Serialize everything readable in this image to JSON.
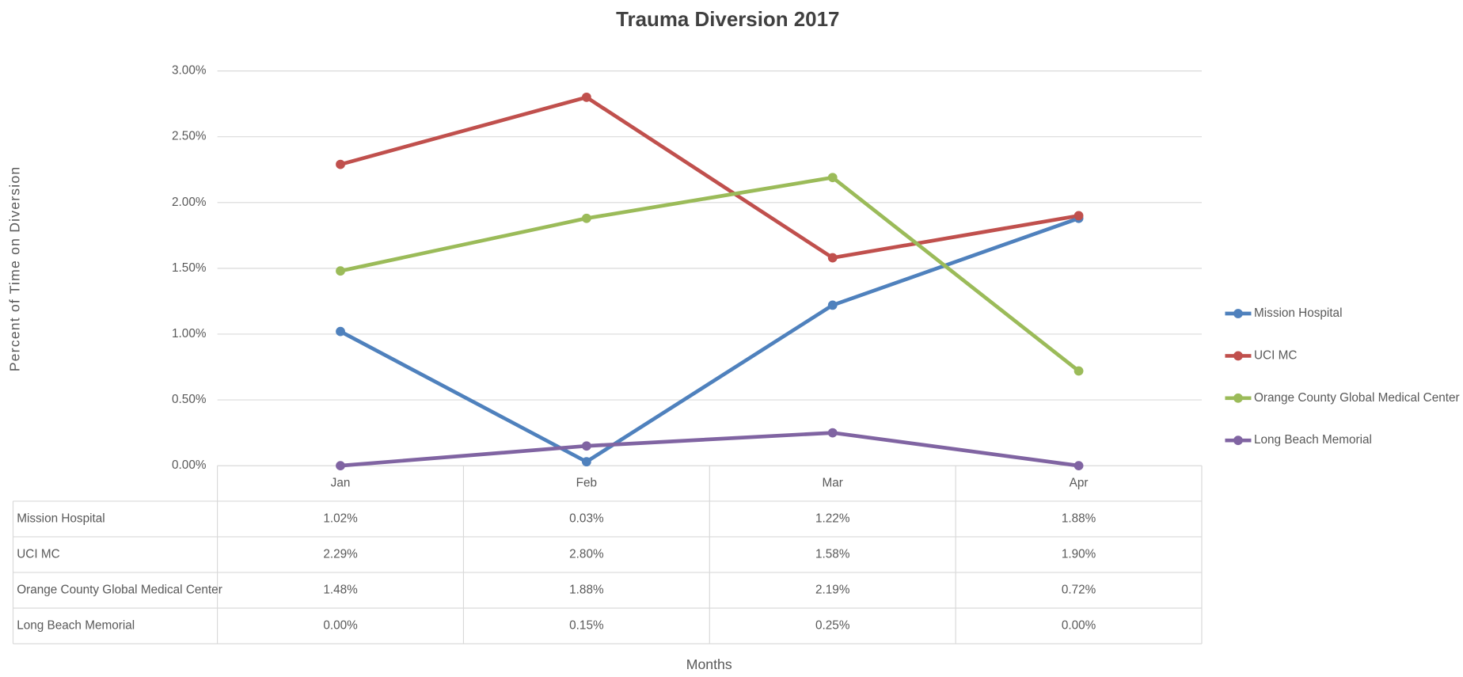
{
  "chart_data": {
    "type": "line",
    "title": "Trauma Diversion 2017",
    "x_label": "Months",
    "y_label": "Percent of Time on Diversion",
    "categories": [
      "Jan",
      "Feb",
      "Mar",
      "Apr"
    ],
    "ylim": [
      0,
      3
    ],
    "yticks": [
      {
        "value": 0,
        "label": "0.00%"
      },
      {
        "value": 0.5,
        "label": "0.50%"
      },
      {
        "value": 1,
        "label": "1.00%"
      },
      {
        "value": 1.5,
        "label": "1.50%"
      },
      {
        "value": 2,
        "label": "2.00%"
      },
      {
        "value": 2.5,
        "label": "2.50%"
      },
      {
        "value": 3,
        "label": "3.00%"
      }
    ],
    "grid": true,
    "legend": "right",
    "series": [
      {
        "name": "Mission Hospital",
        "color": "#4f81bd",
        "values": [
          1.02,
          0.03,
          1.22,
          1.88
        ],
        "value_labels": [
          "1.02%",
          "0.03%",
          "1.22%",
          "1.88%"
        ]
      },
      {
        "name": "UCI MC",
        "color": "#c0504d",
        "values": [
          2.29,
          2.8,
          1.58,
          1.9
        ],
        "value_labels": [
          "2.29%",
          "2.80%",
          "1.58%",
          "1.90%"
        ]
      },
      {
        "name": "Orange County Global Medical Center",
        "color": "#9bbb59",
        "values": [
          1.48,
          1.88,
          2.19,
          0.72
        ],
        "value_labels": [
          "1.48%",
          "1.88%",
          "2.19%",
          "0.72%"
        ]
      },
      {
        "name": "Long Beach Memorial",
        "color": "#8064a2",
        "values": [
          0,
          0.15,
          0.25,
          0
        ],
        "value_labels": [
          "0.00%",
          "0.15%",
          "0.25%",
          "0.00%"
        ]
      }
    ]
  }
}
